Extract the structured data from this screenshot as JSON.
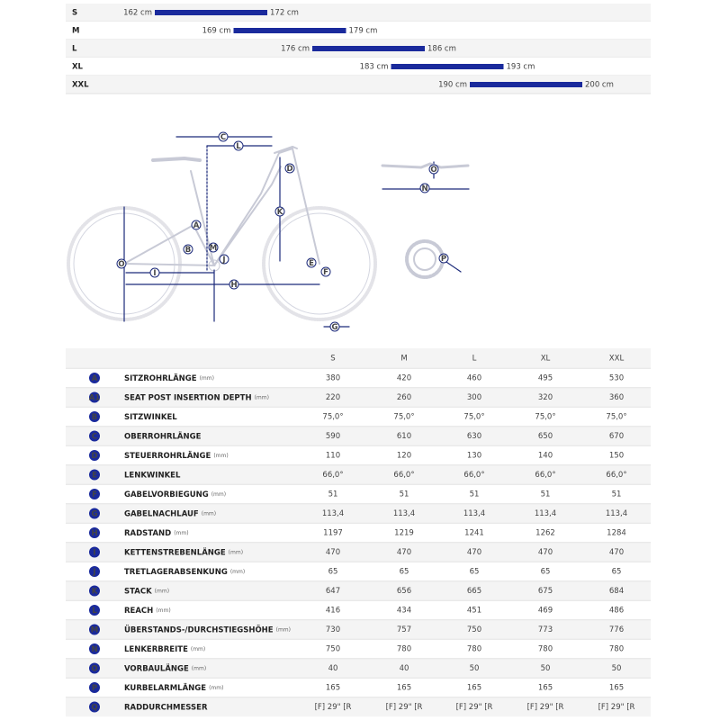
{
  "size_chart": {
    "rows": [
      {
        "size": "S",
        "from": 162,
        "from_label": "162 cm",
        "to": 172,
        "to_label": "172 cm"
      },
      {
        "size": "M",
        "from": 169,
        "from_label": "169 cm",
        "to": 179,
        "to_label": "179 cm"
      },
      {
        "size": "L",
        "from": 176,
        "from_label": "176 cm",
        "to": 186,
        "to_label": "186 cm"
      },
      {
        "size": "XL",
        "from": 183,
        "from_label": "183 cm",
        "to": 193,
        "to_label": "193 cm"
      },
      {
        "size": "XXL",
        "from": 190,
        "from_label": "190 cm",
        "to": 200,
        "to_label": "200 cm"
      }
    ]
  },
  "table": {
    "columns": [
      "S",
      "M",
      "L",
      "XL",
      "XXL"
    ],
    "rows": [
      {
        "letter": "A",
        "name": "SITZROHRLÄNGE",
        "unit": "(mm)",
        "values": [
          "380",
          "420",
          "460",
          "495",
          "530"
        ]
      },
      {
        "letter": "A1",
        "name": "SEAT POST INSERTION DEPTH",
        "unit": "(mm)",
        "values": [
          "220",
          "260",
          "300",
          "320",
          "360"
        ]
      },
      {
        "letter": "B",
        "name": "SITZWINKEL",
        "values": [
          "75,0°",
          "75,0°",
          "75,0°",
          "75,0°",
          "75,0°"
        ]
      },
      {
        "letter": "C",
        "name": "OBERROHRLÄNGE",
        "values": [
          "590",
          "610",
          "630",
          "650",
          "670"
        ]
      },
      {
        "letter": "D",
        "name": "STEUERROHRLÄNGE",
        "unit": "(mm)",
        "values": [
          "110",
          "120",
          "130",
          "140",
          "150"
        ]
      },
      {
        "letter": "E",
        "name": "LENKWINKEL",
        "values": [
          "66,0°",
          "66,0°",
          "66,0°",
          "66,0°",
          "66,0°"
        ]
      },
      {
        "letter": "F",
        "name": "GABELVORBIEGUNG",
        "unit": "(mm)",
        "values": [
          "51",
          "51",
          "51",
          "51",
          "51"
        ]
      },
      {
        "letter": "G",
        "name": "GABELNACHLAUF",
        "unit": "(mm)",
        "values": [
          "113,4",
          "113,4",
          "113,4",
          "113,4",
          "113,4"
        ]
      },
      {
        "letter": "H",
        "name": "RADSTAND",
        "unit": "(mm)",
        "values": [
          "1197",
          "1219",
          "1241",
          "1262",
          "1284"
        ]
      },
      {
        "letter": "I",
        "name": "KETTENSTREBENLÄNGE",
        "unit": "(mm)",
        "values": [
          "470",
          "470",
          "470",
          "470",
          "470"
        ]
      },
      {
        "letter": "J",
        "name": "TRETLAGERABSENKUNG",
        "unit": "(mm)",
        "values": [
          "65",
          "65",
          "65",
          "65",
          "65"
        ]
      },
      {
        "letter": "K",
        "name": "STACK",
        "unit": "(mm)",
        "values": [
          "647",
          "656",
          "665",
          "675",
          "684"
        ]
      },
      {
        "letter": "L",
        "name": "REACH",
        "unit": "(mm)",
        "values": [
          "416",
          "434",
          "451",
          "469",
          "486"
        ]
      },
      {
        "letter": "M",
        "name": "ÜBERSTANDS-/DURCHSTIEGSHÖHE",
        "unit": "(mm)",
        "values": [
          "730",
          "757",
          "750",
          "773",
          "776"
        ]
      },
      {
        "letter": "N",
        "name": "LENKERBREITE",
        "unit": "(mm)",
        "values": [
          "750",
          "780",
          "780",
          "780",
          "780"
        ]
      },
      {
        "letter": "O",
        "name": "VORBAULÄNGE",
        "unit": "(mm)",
        "values": [
          "40",
          "40",
          "50",
          "50",
          "50"
        ]
      },
      {
        "letter": "P",
        "name": "KURBELARMLÄNGE",
        "unit": "(mm)",
        "values": [
          "165",
          "165",
          "165",
          "165",
          "165"
        ]
      },
      {
        "letter": "Q",
        "name": "RADDURCHMESSER",
        "values": [
          "[F] 29\" [R",
          "[F] 29\" [R",
          "[F] 29\" [R",
          "[F] 29\" [R",
          "[F] 29\" [R"
        ]
      }
    ]
  }
}
